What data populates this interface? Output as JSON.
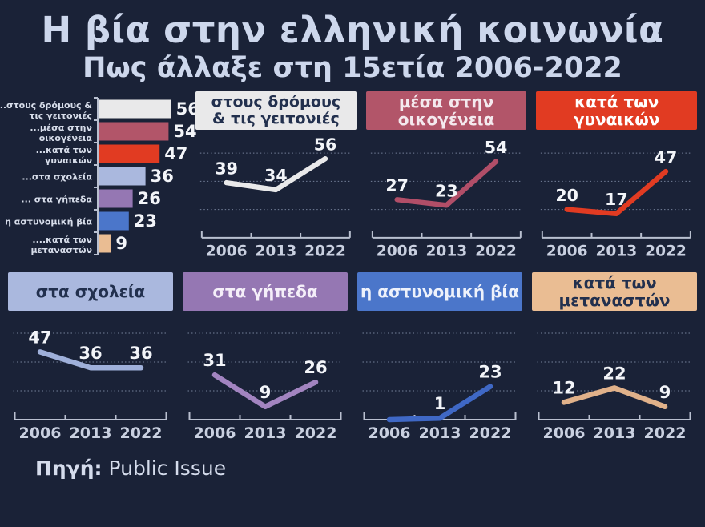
{
  "page": {
    "title": "Η βία στην ελληνική κοινωνία",
    "subtitle": "Πως άλλαξε στη 15ετία 2006-2022",
    "source_label": "Πηγή:",
    "source_value": " Public Issue",
    "background_color": "#1a2237",
    "title_color": "#cdd7ec"
  },
  "chart_data": {
    "type": "multi-panel",
    "x_categories": [
      "2006",
      "2013",
      "2022"
    ],
    "y_range": [
      0,
      70
    ],
    "gridline_values": [
      20,
      40,
      60
    ],
    "grid": "dotted",
    "legend_position": "none",
    "bar_summary": {
      "type": "bar",
      "orientation": "horizontal",
      "categories": [
        "...στους δρόμους & τις γειτονιές",
        "...μέσα στην οικογένεια",
        "...κατά των γυναικών",
        "...στα σχολεία",
        "... στα γήπεδα",
        "η αστυνομική βία",
        "....κατά των μεταναστών"
      ],
      "category_lines": [
        [
          "...στους δρόμους &",
          "τις γειτονιές"
        ],
        [
          "...μέσα στην",
          "οικογένεια"
        ],
        [
          "...κατά των",
          "γυναικών"
        ],
        [
          "...στα σχολεία"
        ],
        [
          "... στα γήπεδα"
        ],
        [
          "η αστυνομική βία"
        ],
        [
          "....κατά των",
          "μεταναστών"
        ]
      ],
      "values": [
        56,
        54,
        47,
        36,
        26,
        23,
        9
      ],
      "colors": [
        "#e9e9ea",
        "#b25569",
        "#e13b22",
        "#aab8de",
        "#9577b3",
        "#4b76ca",
        "#eabd93"
      ]
    },
    "line_charts": [
      {
        "key": "streets",
        "type": "line",
        "title": "στους δρόμους & τις γειτονιές",
        "title_lines": [
          "στους δρόμους",
          "& τις γειτονιές"
        ],
        "header_bg": "#e9e9ea",
        "header_fg": "#22304e",
        "line_color": "#e9e9ea",
        "values": [
          39,
          34,
          56
        ],
        "labels": [
          "39",
          "34",
          "56"
        ]
      },
      {
        "key": "family",
        "type": "line",
        "title": "μέσα στην οικογένεια",
        "title_lines": [
          "μέσα στην οικογένεια"
        ],
        "header_bg": "#b25569",
        "header_fg": "#f4e9ee",
        "line_color": "#b14e68",
        "values": [
          27,
          23,
          54
        ],
        "labels": [
          "27",
          "23",
          "54"
        ]
      },
      {
        "key": "women",
        "type": "line",
        "title": "κατά των γυναικών",
        "title_lines": [
          "κατά των γυναικών"
        ],
        "header_bg": "#e13b22",
        "header_fg": "#ffffff",
        "line_color": "#e13b22",
        "values": [
          20,
          17,
          47
        ],
        "labels": [
          "20",
          "17",
          "47"
        ]
      },
      {
        "key": "schools",
        "type": "line",
        "title": "στα σχολεία",
        "title_lines": [
          "στα σχολεία"
        ],
        "header_bg": "#aab8de",
        "header_fg": "#22304e",
        "line_color": "#9fb0da",
        "values": [
          47,
          36,
          36
        ],
        "labels": [
          "47",
          "36",
          "36"
        ]
      },
      {
        "key": "stadiums",
        "type": "line",
        "title": "στα γήπεδα",
        "title_lines": [
          "στα γήπεδα"
        ],
        "header_bg": "#9577b3",
        "header_fg": "#f5eff9",
        "line_color": "#a284c0",
        "values": [
          31,
          9,
          26
        ],
        "labels": [
          "31",
          "9",
          "26"
        ]
      },
      {
        "key": "police",
        "type": "line",
        "title": "η αστυνομική βία",
        "title_lines": [
          "η αστυνομική βία"
        ],
        "header_bg": "#4b76ca",
        "header_fg": "#eef2fb",
        "line_color": "#3f68c5",
        "values": [
          0,
          1,
          23
        ],
        "labels": [
          "",
          "1",
          "23"
        ]
      },
      {
        "key": "immigrants",
        "type": "line",
        "title": "κατά των μεταναστών",
        "title_lines": [
          "κατά των μεταναστών"
        ],
        "header_bg": "#eabd93",
        "header_fg": "#22304e",
        "line_color": "#e0b18a",
        "values": [
          12,
          22,
          9
        ],
        "labels": [
          "12",
          "22",
          "9"
        ]
      }
    ]
  }
}
